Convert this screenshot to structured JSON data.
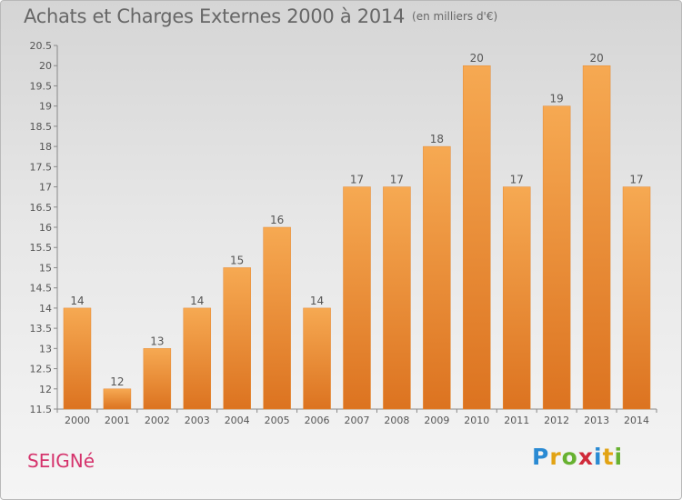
{
  "title": "Achats et Charges Externes 2000 à 2014",
  "subtitle": "(en milliers d'€)",
  "town": "SEIGNé",
  "logo": {
    "text": "Proxiti",
    "letters": [
      "P",
      "r",
      "o",
      "x",
      "i",
      "t",
      "i"
    ],
    "colors": [
      "#2a8ad3",
      "#e2a314",
      "#67b130",
      "#d02a3a",
      "#2a8ad3",
      "#e2a314",
      "#67b130"
    ]
  },
  "chart_data": {
    "type": "bar",
    "categories": [
      "2000",
      "2001",
      "2002",
      "2003",
      "2004",
      "2005",
      "2006",
      "2007",
      "2008",
      "2009",
      "2010",
      "2011",
      "2012",
      "2013",
      "2014"
    ],
    "values": [
      14,
      12,
      13,
      14,
      15,
      16,
      14,
      17,
      17,
      18,
      20,
      17,
      19,
      20,
      17
    ],
    "labels": [
      "14",
      "12",
      "13",
      "14",
      "15",
      "16",
      "14",
      "17",
      "17",
      "18",
      "20",
      "17",
      "19",
      "20",
      "17"
    ],
    "ylim": [
      11.5,
      20.5
    ],
    "yticks": [
      "11.5",
      "12",
      "12.5",
      "13",
      "13.5",
      "14",
      "14.5",
      "15",
      "15.5",
      "16",
      "16.5",
      "17",
      "17.5",
      "18",
      "18.5",
      "19",
      "19.5",
      "20",
      "20.5"
    ],
    "xlabel": "",
    "ylabel": "",
    "grid": false,
    "bar_colors": {
      "top": "#f6a952",
      "bottom": "#dc7320",
      "edge": "#e58a35"
    }
  }
}
